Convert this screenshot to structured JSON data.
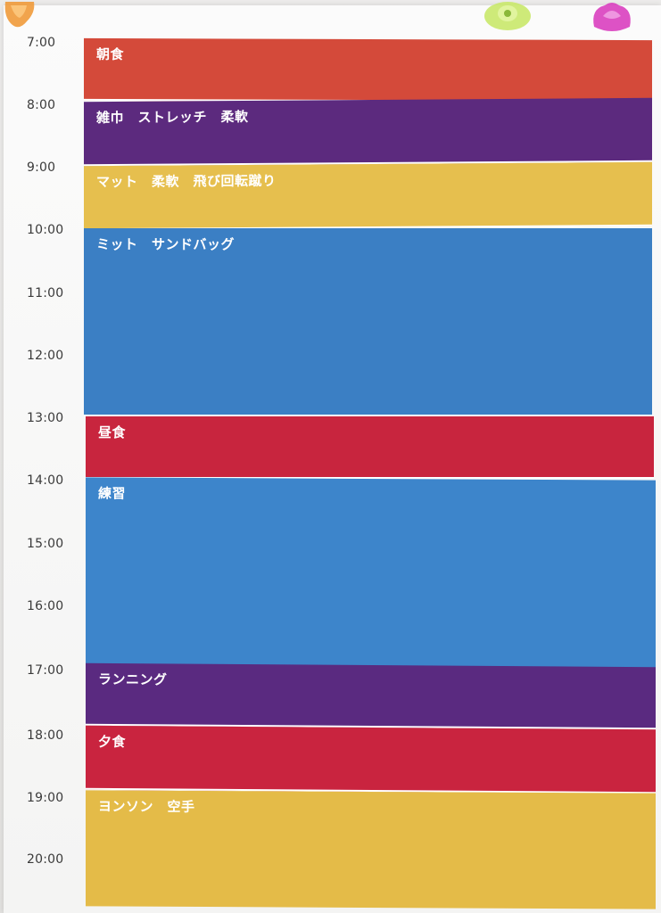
{
  "times": [
    "7:00",
    "8:00",
    "9:00",
    "10:00",
    "11:00",
    "12:00",
    "13:00",
    "14:00",
    "15:00",
    "16:00",
    "17:00",
    "18:00",
    "19:00",
    "20:00"
  ],
  "blocks": [
    {
      "label": "朝食",
      "color": "#d44a3a"
    },
    {
      "label": "雑巾　ストレッチ　柔軟",
      "color": "#5c2a7e"
    },
    {
      "label": "マット　柔軟　飛び回転蹴り",
      "color": "#e6bf4e"
    },
    {
      "label": "ミット　サンドバッグ",
      "color": "#3b7fc4"
    },
    {
      "label": "昼食",
      "color": "#c8253e"
    },
    {
      "label": "練習",
      "color": "#3d85cb"
    },
    {
      "label": "ランニング",
      "color": "#5a2a80"
    },
    {
      "label": "夕食",
      "color": "#c9243f"
    },
    {
      "label": "ヨンソン　空手",
      "color": "#e4bb48"
    }
  ],
  "magnets": [
    {
      "name": "orange-magnet-icon",
      "color": "#f09a3a"
    },
    {
      "name": "green-magnet-icon",
      "color": "#c9e86a"
    },
    {
      "name": "pink-magnet-icon",
      "color": "#d93fbf"
    }
  ]
}
